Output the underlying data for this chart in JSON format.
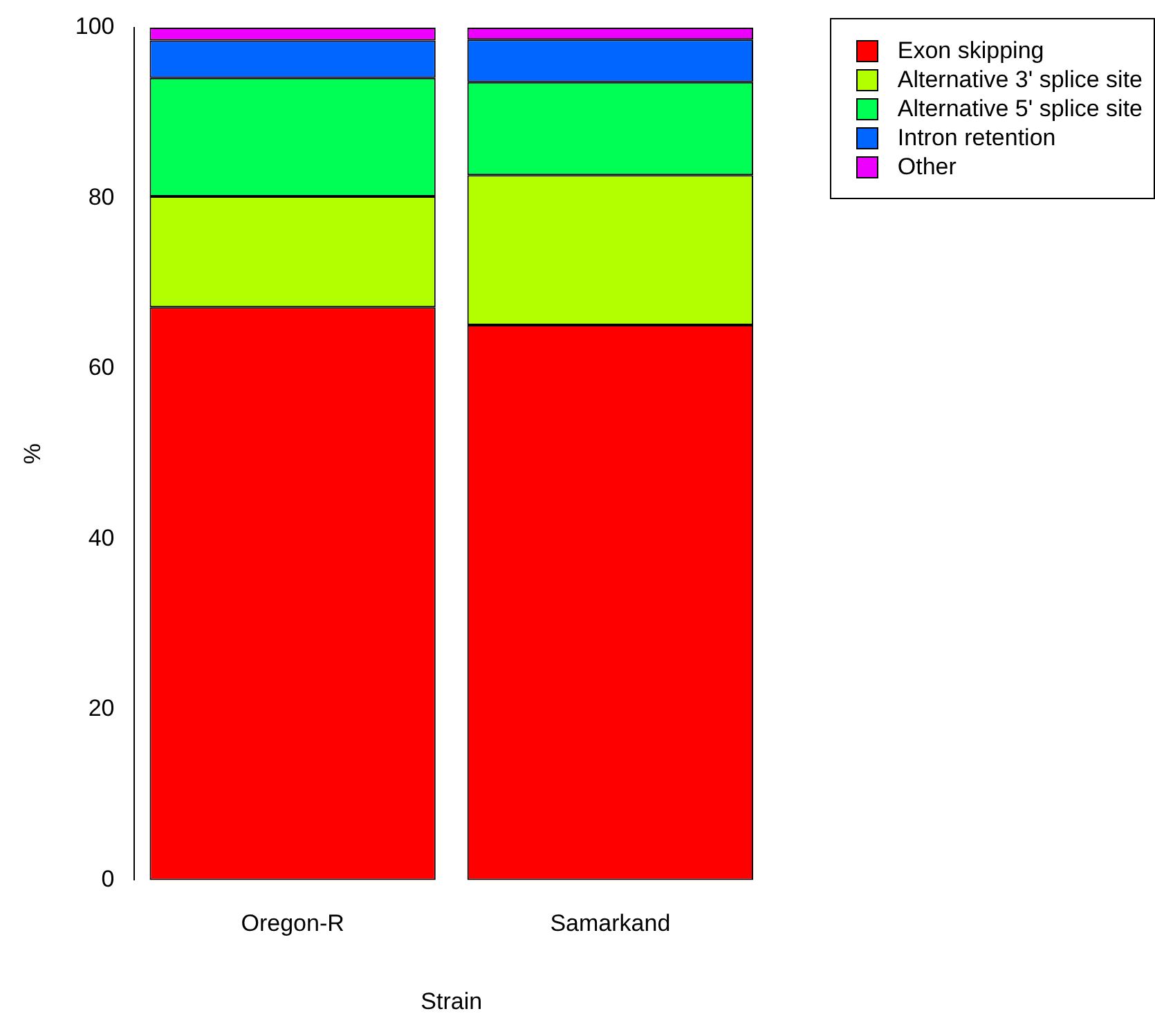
{
  "chart_data": {
    "type": "bar",
    "stacked": true,
    "xlabel": "Strain",
    "ylabel": "%",
    "categories": [
      "Oregon-R",
      "Samarkand"
    ],
    "series": [
      {
        "name": "Exon skipping",
        "color": "#ff0000",
        "values": [
          67.2,
          65.1
        ]
      },
      {
        "name": "Alternative 3' splice site",
        "color": "#b3ff00",
        "values": [
          13.0,
          17.6
        ]
      },
      {
        "name": "Alternative 5' splice site",
        "color": "#00ff55",
        "values": [
          13.9,
          10.9
        ]
      },
      {
        "name": "Intron retention",
        "color": "#0066ff",
        "values": [
          4.4,
          5.0
        ]
      },
      {
        "name": "Other",
        "color": "#ee00ff",
        "values": [
          1.5,
          1.4
        ]
      }
    ],
    "ylim": [
      0,
      100
    ],
    "yticks": [
      0,
      20,
      40,
      60,
      80,
      100
    ],
    "grid": false,
    "legend": "top right"
  }
}
